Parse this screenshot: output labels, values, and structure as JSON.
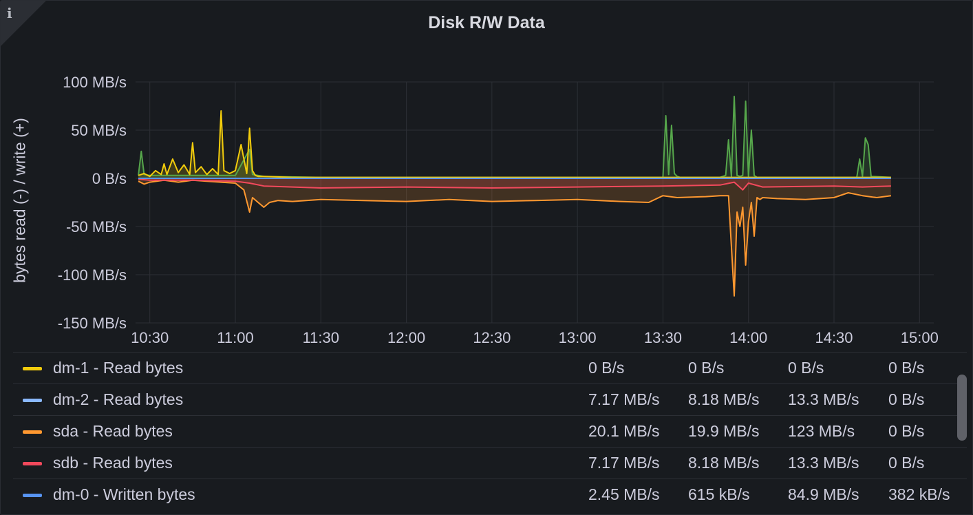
{
  "panel": {
    "title": "Disk R/W Data",
    "info_icon": "info-icon"
  },
  "chart_data": {
    "type": "area",
    "title": "Disk R/W Data",
    "xlabel": "",
    "ylabel": "bytes read (-) / write (+)",
    "x_ticks": [
      "10:30",
      "11:00",
      "11:30",
      "12:00",
      "12:30",
      "13:00",
      "13:30",
      "14:00",
      "14:30",
      "15:00"
    ],
    "y_ticks": [
      "100 MB/s",
      "50 MB/s",
      "0 B/s",
      "-50 MB/s",
      "-100 MB/s",
      "-150 MB/s"
    ],
    "y_tick_values": [
      100,
      50,
      0,
      -50,
      -100,
      -150
    ],
    "ylim": [
      -150,
      100
    ],
    "xlim": [
      "10:25",
      "15:05"
    ],
    "y_unit": "MB/s",
    "grid": true,
    "legend_position": "bottom",
    "series": [
      {
        "name": "dm-1 - Read bytes",
        "color": "#f2cc0c",
        "x": [
          "10:26",
          "10:28",
          "10:30",
          "10:32",
          "10:34",
          "10:35",
          "10:36",
          "10:38",
          "10:40",
          "10:42",
          "10:44",
          "10:45",
          "10:46",
          "10:48",
          "10:50",
          "10:52",
          "10:54",
          "10:55",
          "10:56",
          "10:58",
          "11:00",
          "11:02",
          "11:04",
          "11:05",
          "11:06",
          "11:07",
          "11:08",
          "11:10",
          "11:20",
          "12:00",
          "13:00",
          "14:00",
          "14:50"
        ],
        "values": [
          3,
          5,
          2,
          8,
          4,
          15,
          4,
          20,
          6,
          14,
          4,
          37,
          6,
          12,
          4,
          10,
          4,
          70,
          8,
          5,
          8,
          35,
          5,
          52,
          8,
          3,
          2,
          2,
          1,
          1,
          1,
          1,
          1
        ]
      },
      {
        "name": "dm-2 - Read bytes",
        "color": "#8ab8ff",
        "x": [
          "10:26",
          "14:50"
        ],
        "values": [
          0,
          0
        ]
      },
      {
        "name": "sda - Read bytes",
        "color": "#ff9830",
        "x": [
          "10:26",
          "10:28",
          "10:30",
          "10:35",
          "10:40",
          "10:45",
          "10:50",
          "10:55",
          "11:00",
          "11:03",
          "11:05",
          "11:06",
          "11:08",
          "11:10",
          "11:12",
          "11:15",
          "11:20",
          "11:30",
          "11:45",
          "12:00",
          "12:15",
          "12:30",
          "12:45",
          "13:00",
          "13:15",
          "13:25",
          "13:30",
          "13:35",
          "13:45",
          "13:50",
          "13:53",
          "13:55",
          "13:56",
          "13:57",
          "13:58",
          "13:59",
          "14:00",
          "14:01",
          "14:02",
          "14:03",
          "14:04",
          "14:05",
          "14:10",
          "14:20",
          "14:30",
          "14:35",
          "14:40",
          "14:45",
          "14:50"
        ],
        "values": [
          -3,
          -6,
          -4,
          -2,
          -4,
          -2,
          -3,
          -4,
          -5,
          -12,
          -35,
          -20,
          -25,
          -30,
          -25,
          -23,
          -24,
          -22,
          -23,
          -24,
          -22,
          -24,
          -23,
          -22,
          -24,
          -25,
          -18,
          -20,
          -19,
          -18,
          -18,
          -122,
          -35,
          -50,
          -30,
          -90,
          -45,
          -25,
          -60,
          -20,
          -22,
          -20,
          -21,
          -22,
          -20,
          -15,
          -18,
          -20,
          -18
        ]
      },
      {
        "name": "sdb - Read bytes",
        "color": "#f2495c",
        "x": [
          "10:26",
          "10:30",
          "10:45",
          "11:00",
          "11:05",
          "11:10",
          "11:30",
          "12:00",
          "12:30",
          "13:00",
          "13:30",
          "13:50",
          "13:55",
          "13:58",
          "14:00",
          "14:05",
          "14:30",
          "14:40",
          "14:50"
        ],
        "values": [
          -1,
          -2,
          -2,
          -3,
          -5,
          -8,
          -10,
          -9,
          -10,
          -9,
          -8,
          -7,
          -4,
          -12,
          -5,
          -9,
          -8,
          -9,
          -8
        ]
      },
      {
        "name": "dm-0 - Written bytes",
        "color": "#5794f2",
        "x": [
          "10:26",
          "14:50"
        ],
        "values": [
          0,
          0
        ]
      },
      {
        "name": "",
        "color": "#56a64b",
        "x": [
          "10:26",
          "10:27",
          "10:28",
          "10:30",
          "10:40",
          "10:55",
          "11:00",
          "11:05",
          "11:06",
          "11:10",
          "11:30",
          "12:00",
          "13:00",
          "13:30",
          "13:31",
          "13:32",
          "13:33",
          "13:34",
          "13:35",
          "13:36",
          "13:50",
          "13:52",
          "13:53",
          "13:54",
          "13:55",
          "13:56",
          "13:57",
          "13:58",
          "13:59",
          "14:00",
          "14:01",
          "14:02",
          "14:03",
          "14:20",
          "14:38",
          "14:39",
          "14:40",
          "14:41",
          "14:42",
          "14:43",
          "14:50"
        ],
        "values": [
          3,
          28,
          4,
          3,
          3,
          3,
          3,
          30,
          4,
          2,
          1,
          1,
          1,
          1,
          65,
          4,
          55,
          5,
          2,
          1,
          1,
          3,
          40,
          2,
          85,
          3,
          2,
          3,
          80,
          2,
          50,
          3,
          1,
          1,
          1,
          20,
          2,
          42,
          35,
          2,
          1
        ]
      }
    ],
    "legend_values": [
      [
        "0 B/s",
        "0 B/s",
        "0 B/s",
        "0 B/s"
      ],
      [
        "7.17 MB/s",
        "8.18 MB/s",
        "13.3 MB/s",
        "0 B/s"
      ],
      [
        "20.1 MB/s",
        "19.9 MB/s",
        "123 MB/s",
        "0 B/s"
      ],
      [
        "7.17 MB/s",
        "8.18 MB/s",
        "13.3 MB/s",
        "0 B/s"
      ],
      [
        "2.45 MB/s",
        "615 kB/s",
        "84.9 MB/s",
        "382 kB/s"
      ]
    ]
  }
}
